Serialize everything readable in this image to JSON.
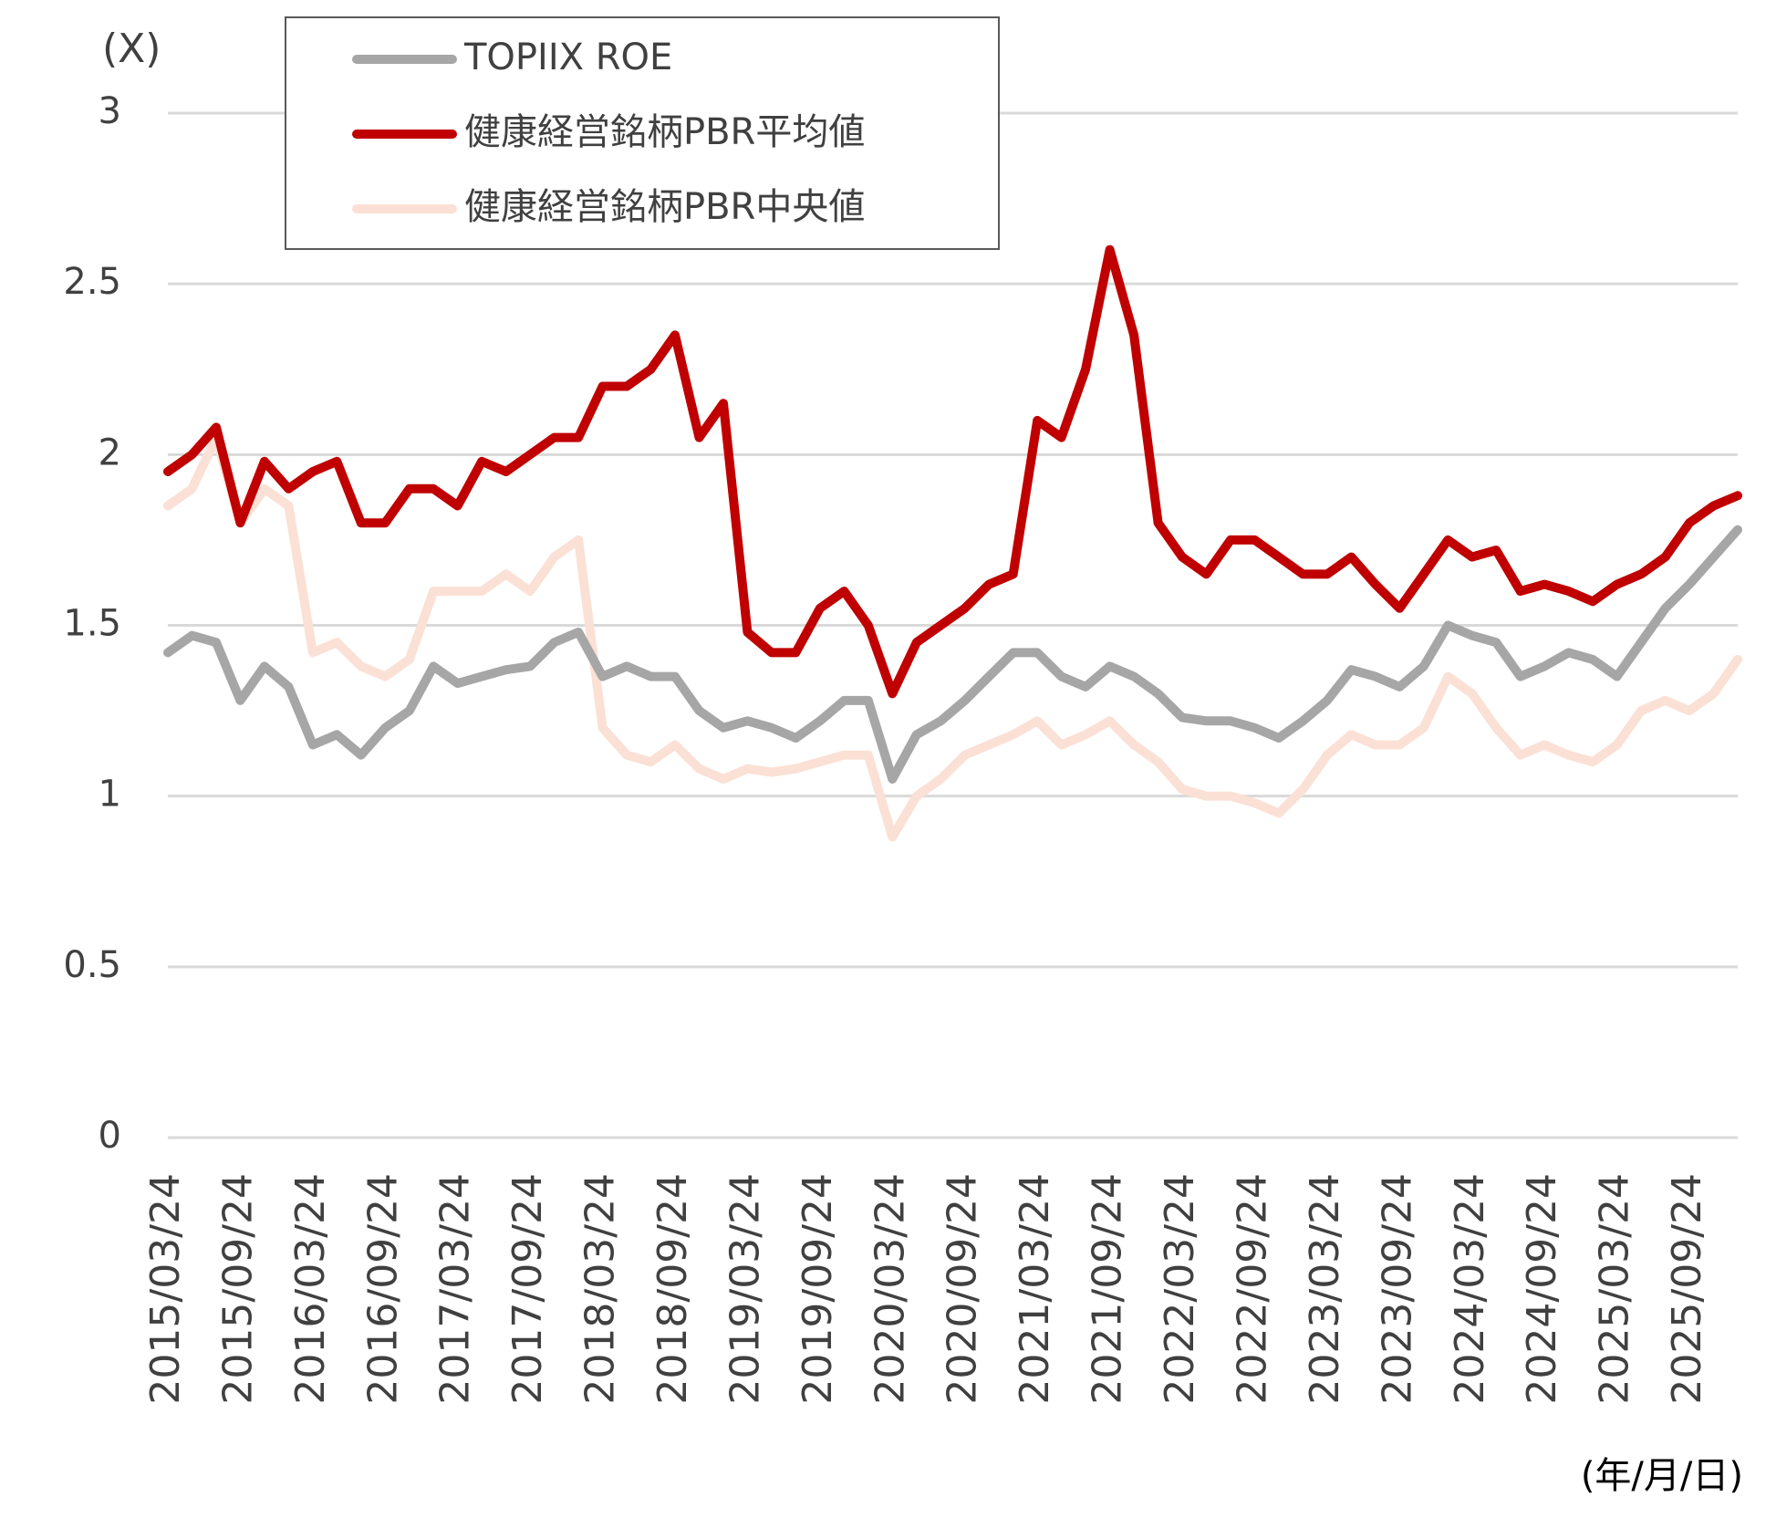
{
  "chart_data": {
    "type": "line",
    "y_label": "(X)",
    "x_label": "(年/月/日)",
    "categories": [
      "2015/03/24",
      null,
      null,
      "2015/09/24",
      null,
      null,
      "2016/03/24",
      null,
      null,
      "2016/09/24",
      null,
      null,
      "2017/03/24",
      null,
      null,
      "2017/09/24",
      null,
      null,
      "2018/03/24",
      null,
      null,
      "2018/09/24",
      null,
      null,
      "2019/03/24",
      null,
      null,
      "2019/09/24",
      null,
      null,
      "2020/03/24",
      null,
      null,
      "2020/09/24",
      null,
      null,
      "2021/03/24",
      null,
      null,
      "2021/09/24",
      null,
      null,
      "2022/03/24",
      null,
      null,
      "2022/09/24",
      null,
      null,
      "2023/03/24",
      null,
      null,
      "2023/09/24",
      null,
      null,
      "2024/03/24",
      null,
      null,
      "2024/09/24",
      null,
      null,
      "2025/03/24",
      null,
      null,
      "2025/09/24",
      null,
      null
    ],
    "series": [
      {
        "name": "TOPIIX ROE",
        "color": "#a6a6a6",
        "values": [
          1.42,
          1.47,
          1.45,
          1.28,
          1.38,
          1.32,
          1.15,
          1.18,
          1.12,
          1.2,
          1.25,
          1.38,
          1.33,
          1.35,
          1.37,
          1.38,
          1.45,
          1.48,
          1.35,
          1.38,
          1.35,
          1.35,
          1.25,
          1.2,
          1.22,
          1.2,
          1.17,
          1.22,
          1.28,
          1.28,
          1.05,
          1.18,
          1.22,
          1.28,
          1.35,
          1.42,
          1.42,
          1.35,
          1.32,
          1.38,
          1.35,
          1.3,
          1.23,
          1.22,
          1.22,
          1.2,
          1.17,
          1.22,
          1.28,
          1.37,
          1.35,
          1.32,
          1.38,
          1.5,
          1.47,
          1.45,
          1.35,
          1.38,
          1.42,
          1.4,
          1.35,
          1.45,
          1.55,
          1.62,
          1.7,
          1.78
        ]
      },
      {
        "name": "健康経営銘柄PBR平均値",
        "color": "#c00000",
        "values": [
          1.95,
          2.0,
          2.08,
          1.8,
          1.98,
          1.9,
          1.95,
          1.98,
          1.8,
          1.8,
          1.9,
          1.9,
          1.85,
          1.98,
          1.95,
          2.0,
          2.05,
          2.05,
          2.2,
          2.2,
          2.25,
          2.35,
          2.05,
          2.15,
          1.48,
          1.42,
          1.42,
          1.55,
          1.6,
          1.5,
          1.3,
          1.45,
          1.5,
          1.55,
          1.62,
          1.65,
          2.1,
          2.05,
          2.25,
          2.6,
          2.35,
          1.8,
          1.7,
          1.65,
          1.75,
          1.75,
          1.7,
          1.65,
          1.65,
          1.7,
          1.62,
          1.55,
          1.65,
          1.75,
          1.7,
          1.72,
          1.6,
          1.62,
          1.6,
          1.57,
          1.62,
          1.65,
          1.7,
          1.8,
          1.85,
          1.88
        ]
      },
      {
        "name": "健康経営銘柄PBR中央値",
        "color": "#fbe0d5",
        "values": [
          1.85,
          1.9,
          2.05,
          1.8,
          1.9,
          1.85,
          1.42,
          1.45,
          1.38,
          1.35,
          1.4,
          1.6,
          1.6,
          1.6,
          1.65,
          1.6,
          1.7,
          1.75,
          1.2,
          1.12,
          1.1,
          1.15,
          1.08,
          1.05,
          1.08,
          1.07,
          1.08,
          1.1,
          1.12,
          1.12,
          0.88,
          1.0,
          1.05,
          1.12,
          1.15,
          1.18,
          1.22,
          1.15,
          1.18,
          1.22,
          1.15,
          1.1,
          1.02,
          1.0,
          1.0,
          0.98,
          0.95,
          1.02,
          1.12,
          1.18,
          1.15,
          1.15,
          1.2,
          1.35,
          1.3,
          1.2,
          1.12,
          1.15,
          1.12,
          1.1,
          1.15,
          1.25,
          1.28,
          1.25,
          1.3,
          1.4
        ]
      }
    ],
    "ylim": [
      0,
      3
    ],
    "yticks": [
      0,
      0.5,
      1,
      1.5,
      2,
      2.5,
      3
    ],
    "grid": true,
    "legend": "upper left"
  }
}
